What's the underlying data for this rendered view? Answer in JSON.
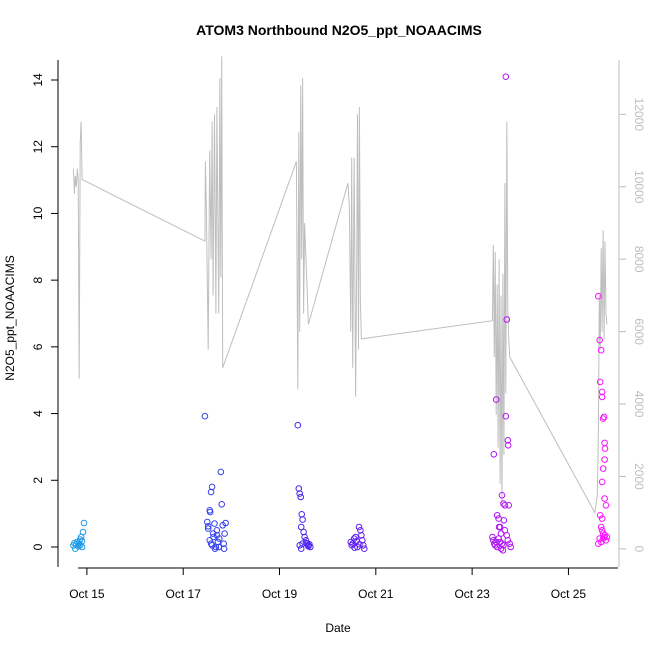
{
  "chart_data": {
    "type": "scatter",
    "title": "ATOM3 Northbound N2O5_ppt_NOAACIMS",
    "xlabel": "Date",
    "ylabel": "N2O5_ppt_NOAACIMS",
    "x_ticks": [
      "Oct 15",
      "Oct 17",
      "Oct 19",
      "Oct 21",
      "Oct 23",
      "Oct 25"
    ],
    "x_tick_days": [
      15,
      17,
      19,
      21,
      23,
      25
    ],
    "y_ticks": [
      0,
      2,
      4,
      6,
      8,
      10,
      12,
      14
    ],
    "y2_ticks": [
      0,
      2000,
      4000,
      6000,
      8000,
      10000,
      12000
    ],
    "xlim": [
      14.4,
      26.05
    ],
    "ylim": [
      -0.6,
      14.6
    ],
    "y2lim": [
      -500,
      13500
    ],
    "grid": false,
    "colors": {
      "axis": "#000000",
      "right_axis": "#bebebe",
      "altitude_line": "#bebebe",
      "point_gradient": [
        "#1ea0e6",
        "#3a2cf0",
        "#7a18f0",
        "#ff10ff"
      ]
    },
    "series": [
      {
        "style": "points",
        "axis": "left",
        "points": [
          [
            14.72,
            0.05
          ],
          [
            14.74,
            0.12
          ],
          [
            14.76,
            -0.05
          ],
          [
            14.78,
            0.08
          ],
          [
            14.8,
            0.15
          ],
          [
            14.82,
            0.02
          ],
          [
            14.84,
            0.1
          ],
          [
            14.86,
            0.22
          ],
          [
            14.88,
            0.3
          ],
          [
            14.9,
            0.18
          ],
          [
            14.92,
            0.45
          ],
          [
            14.94,
            0.72
          ],
          [
            14.9,
            0.0
          ],
          [
            14.86,
            0.05
          ],
          [
            17.45,
            3.92
          ],
          [
            17.5,
            0.75
          ],
          [
            17.52,
            0.55
          ],
          [
            17.55,
            1.1
          ],
          [
            17.56,
            1.05
          ],
          [
            17.58,
            1.65
          ],
          [
            17.6,
            1.8
          ],
          [
            17.62,
            0.4
          ],
          [
            17.63,
            0.3
          ],
          [
            17.65,
            0.7
          ],
          [
            17.55,
            0.2
          ],
          [
            17.6,
            0.05
          ],
          [
            17.68,
            0.0
          ],
          [
            17.7,
            0.5
          ],
          [
            17.72,
            0.15
          ],
          [
            17.75,
            0.25
          ],
          [
            17.78,
            2.25
          ],
          [
            17.8,
            1.28
          ],
          [
            17.82,
            0.65
          ],
          [
            17.84,
            0.1
          ],
          [
            17.85,
            -0.05
          ],
          [
            17.7,
            0.35
          ],
          [
            17.74,
            0.0
          ],
          [
            17.66,
            -0.05
          ],
          [
            17.58,
            0.1
          ],
          [
            17.88,
            0.72
          ],
          [
            17.86,
            0.4
          ],
          [
            17.52,
            0.62
          ],
          [
            19.38,
            3.65
          ],
          [
            19.4,
            1.75
          ],
          [
            19.42,
            1.6
          ],
          [
            19.44,
            1.5
          ],
          [
            19.46,
            0.98
          ],
          [
            19.48,
            0.82
          ],
          [
            19.45,
            0.6
          ],
          [
            19.5,
            0.45
          ],
          [
            19.52,
            0.3
          ],
          [
            19.55,
            0.2
          ],
          [
            19.58,
            0.1
          ],
          [
            19.6,
            0.05
          ],
          [
            19.62,
            0.08
          ],
          [
            19.64,
            0.0
          ],
          [
            19.48,
            0.1
          ],
          [
            19.42,
            0.05
          ],
          [
            19.45,
            -0.05
          ],
          [
            19.55,
            0.12
          ],
          [
            19.6,
            0.02
          ],
          [
            20.48,
            0.15
          ],
          [
            20.5,
            0.05
          ],
          [
            20.52,
            0.1
          ],
          [
            20.55,
            0.25
          ],
          [
            20.58,
            0.3
          ],
          [
            20.6,
            0.18
          ],
          [
            20.65,
            0.6
          ],
          [
            20.68,
            0.5
          ],
          [
            20.7,
            0.35
          ],
          [
            20.72,
            0.2
          ],
          [
            20.74,
            0.05
          ],
          [
            20.76,
            -0.05
          ],
          [
            20.62,
            0.0
          ],
          [
            20.56,
            -0.02
          ],
          [
            20.66,
            0.08
          ],
          [
            23.45,
            2.78
          ],
          [
            23.5,
            4.42
          ],
          [
            23.52,
            0.95
          ],
          [
            23.55,
            0.85
          ],
          [
            23.58,
            0.6
          ],
          [
            23.6,
            0.4
          ],
          [
            23.62,
            1.55
          ],
          [
            23.65,
            1.3
          ],
          [
            23.68,
            1.25
          ],
          [
            23.7,
            3.92
          ],
          [
            23.72,
            6.82
          ],
          [
            23.74,
            3.2
          ],
          [
            23.75,
            3.05
          ],
          [
            23.76,
            1.25
          ],
          [
            23.7,
            14.1
          ],
          [
            23.42,
            0.3
          ],
          [
            23.44,
            0.2
          ],
          [
            23.46,
            0.1
          ],
          [
            23.48,
            0.05
          ],
          [
            23.52,
            0.0
          ],
          [
            23.55,
            0.25
          ],
          [
            23.58,
            0.15
          ],
          [
            23.62,
            0.1
          ],
          [
            23.65,
            0.05
          ],
          [
            23.68,
            0.5
          ],
          [
            23.72,
            0.35
          ],
          [
            23.74,
            0.2
          ],
          [
            23.78,
            0.1
          ],
          [
            23.8,
            0.0
          ],
          [
            23.6,
            -0.05
          ],
          [
            23.64,
            -0.1
          ],
          [
            23.5,
            0.15
          ],
          [
            23.56,
            0.6
          ],
          [
            23.66,
            0.8
          ],
          [
            25.62,
            7.52
          ],
          [
            25.65,
            6.2
          ],
          [
            25.66,
            4.95
          ],
          [
            25.68,
            5.9
          ],
          [
            25.7,
            4.65
          ],
          [
            25.7,
            4.5
          ],
          [
            25.72,
            3.85
          ],
          [
            25.74,
            3.9
          ],
          [
            25.75,
            3.12
          ],
          [
            25.76,
            2.95
          ],
          [
            25.75,
            2.62
          ],
          [
            25.72,
            2.35
          ],
          [
            25.7,
            1.95
          ],
          [
            25.75,
            1.45
          ],
          [
            25.78,
            1.25
          ],
          [
            25.66,
            0.95
          ],
          [
            25.7,
            0.85
          ],
          [
            25.68,
            0.6
          ],
          [
            25.7,
            0.5
          ],
          [
            25.72,
            0.4
          ],
          [
            25.74,
            0.3
          ],
          [
            25.76,
            0.35
          ],
          [
            25.78,
            0.2
          ],
          [
            25.65,
            0.25
          ],
          [
            25.68,
            0.15
          ],
          [
            25.72,
            0.25
          ],
          [
            25.8,
            0.3
          ],
          [
            25.62,
            0.1
          ]
        ]
      },
      {
        "style": "line",
        "axis": "right",
        "points": [
          [
            14.72,
            10500
          ],
          [
            14.74,
            9800
          ],
          [
            14.76,
            10300
          ],
          [
            14.78,
            10000
          ],
          [
            14.8,
            10500
          ],
          [
            14.82,
            10200
          ],
          [
            14.84,
            4700
          ],
          [
            14.86,
            11200
          ],
          [
            14.88,
            11800
          ],
          [
            14.9,
            10200
          ],
          [
            17.45,
            8500
          ],
          [
            17.46,
            10700
          ],
          [
            17.48,
            9500
          ],
          [
            17.52,
            5500
          ],
          [
            17.55,
            11000
          ],
          [
            17.58,
            8000
          ],
          [
            17.6,
            11800
          ],
          [
            17.62,
            7000
          ],
          [
            17.65,
            12000
          ],
          [
            17.68,
            6500
          ],
          [
            17.7,
            12200
          ],
          [
            17.72,
            9000
          ],
          [
            17.74,
            6500
          ],
          [
            17.76,
            13000
          ],
          [
            17.78,
            7500
          ],
          [
            17.8,
            13600
          ],
          [
            17.82,
            5000
          ],
          [
            19.35,
            10700
          ],
          [
            19.38,
            4400
          ],
          [
            19.4,
            11500
          ],
          [
            19.42,
            6000
          ],
          [
            19.44,
            12800
          ],
          [
            19.46,
            8000
          ],
          [
            19.48,
            13000
          ],
          [
            19.5,
            6500
          ],
          [
            19.52,
            9000
          ],
          [
            19.6,
            6200
          ],
          [
            20.42,
            10100
          ],
          [
            20.45,
            9500
          ],
          [
            20.48,
            6000
          ],
          [
            20.5,
            10800
          ],
          [
            20.52,
            5000
          ],
          [
            20.55,
            10800
          ],
          [
            20.58,
            4200
          ],
          [
            20.6,
            7500
          ],
          [
            20.62,
            12000
          ],
          [
            20.64,
            5500
          ],
          [
            20.66,
            12200
          ],
          [
            20.68,
            6800
          ],
          [
            20.7,
            5800
          ],
          [
            23.42,
            6300
          ],
          [
            23.44,
            8400
          ],
          [
            23.46,
            5300
          ],
          [
            23.48,
            8200
          ],
          [
            23.5,
            3700
          ],
          [
            23.52,
            7300
          ],
          [
            23.54,
            2800
          ],
          [
            23.56,
            8000
          ],
          [
            23.58,
            1800
          ],
          [
            23.6,
            7000
          ],
          [
            23.62,
            1200
          ],
          [
            23.64,
            7600
          ],
          [
            23.66,
            2600
          ],
          [
            23.68,
            10100
          ],
          [
            23.7,
            4300
          ],
          [
            23.72,
            11800
          ],
          [
            23.74,
            6600
          ],
          [
            23.76,
            5800
          ],
          [
            23.78,
            5300
          ],
          [
            25.55,
            1000
          ],
          [
            25.6,
            1500
          ],
          [
            25.62,
            3000
          ],
          [
            25.64,
            7000
          ],
          [
            25.66,
            5500
          ],
          [
            25.68,
            8300
          ],
          [
            25.7,
            6000
          ],
          [
            25.72,
            8800
          ],
          [
            25.74,
            5800
          ],
          [
            25.76,
            8500
          ],
          [
            25.78,
            6500
          ],
          [
            25.8,
            6200
          ]
        ]
      }
    ]
  }
}
